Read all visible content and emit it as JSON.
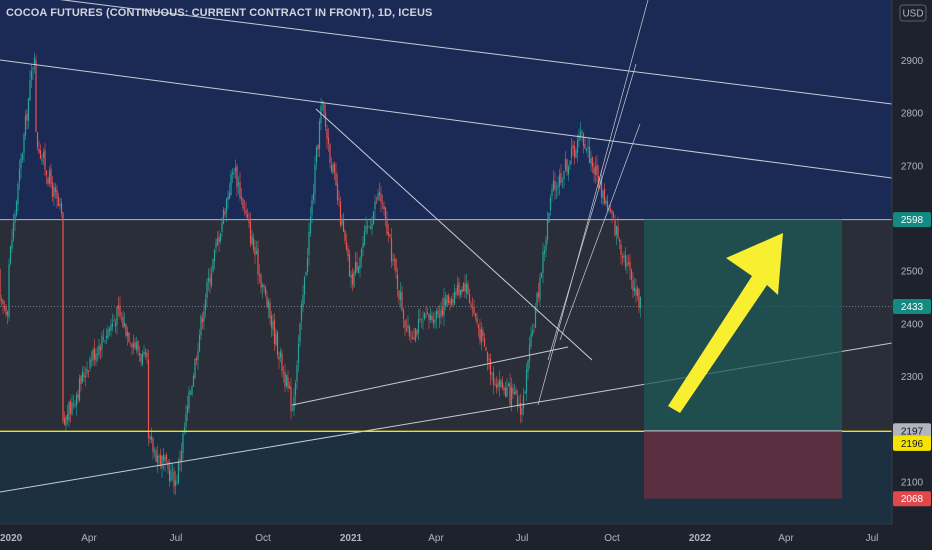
{
  "chart_data": {
    "type": "candlestick",
    "title": "COCOA FUTURES (CONTINUOUS: CURRENT CONTRACT IN FRONT), 1D, ICEUS",
    "currency_label": "USD",
    "ylim": [
      2020,
      3015
    ],
    "y_ticks": [
      2100,
      2200,
      2300,
      2400,
      2500,
      2600,
      2700,
      2800,
      2900
    ],
    "x_ticks": [
      "2020",
      "Apr",
      "Jul",
      "Oct",
      "2021",
      "Apr",
      "Jul",
      "Oct",
      "2022",
      "Apr",
      "Jul"
    ],
    "price_tags": [
      {
        "label": "2598",
        "value": 2598,
        "bg": "#138a82",
        "fg": "#ffffff",
        "role": "resistance"
      },
      {
        "label": "2433",
        "value": 2433,
        "bg": "#138a82",
        "fg": "#ffffff",
        "role": "last"
      },
      {
        "label": "2197",
        "value": 2197,
        "bg": "#b2b5be",
        "fg": "#131722",
        "role": "entry"
      },
      {
        "label": "2196",
        "value": 2196,
        "bg": "#f5e400",
        "fg": "#131722",
        "role": "support"
      },
      {
        "label": "2068",
        "value": 2068,
        "bg": "#e0484b",
        "fg": "#ffffff",
        "role": "stop"
      }
    ],
    "series": [
      {
        "name": "price",
        "points": [
          [
            "2020-01",
            2500
          ],
          [
            "2020-02",
            2930
          ],
          [
            "2020-02",
            2760
          ],
          [
            "2020-03",
            2600
          ],
          [
            "2020-03",
            2200
          ],
          [
            "2020-04",
            2330
          ],
          [
            "2020-05",
            2420
          ],
          [
            "2020-06",
            2320
          ],
          [
            "2020-06",
            2180
          ],
          [
            "2020-07",
            2100
          ],
          [
            "2020-08",
            2450
          ],
          [
            "2020-09",
            2700
          ],
          [
            "2020-10",
            2470
          ],
          [
            "2020-11",
            2240
          ],
          [
            "2020-12",
            2820
          ],
          [
            "2021-01",
            2480
          ],
          [
            "2021-02",
            2650
          ],
          [
            "2021-03",
            2380
          ],
          [
            "2021-04",
            2420
          ],
          [
            "2021-05",
            2480
          ],
          [
            "2021-06",
            2300
          ],
          [
            "2021-07",
            2240
          ],
          [
            "2021-08",
            2650
          ],
          [
            "2021-09",
            2760
          ],
          [
            "2021-10",
            2600
          ],
          [
            "2021-11",
            2433
          ]
        ]
      }
    ],
    "zones": [
      {
        "label": "upper-channel",
        "from": 2598,
        "to": 3015,
        "color": "#1b2a55"
      },
      {
        "label": "range",
        "from": 2197,
        "to": 2598,
        "color": "#2a2e39"
      },
      {
        "label": "lower-channel",
        "from": 2020,
        "to": 2197,
        "color": "#1c3042"
      }
    ],
    "position": {
      "type": "long",
      "entry": 2197,
      "target": 2598,
      "stop": 2068
    },
    "annotations": [
      "yellow up arrow indicating expected upward move"
    ],
    "colors": {
      "up": "#26a69a",
      "down": "#ef5350",
      "trendline": "#c8cbd6",
      "support": "#f5e400",
      "arrow": "#f7ef2f"
    }
  }
}
